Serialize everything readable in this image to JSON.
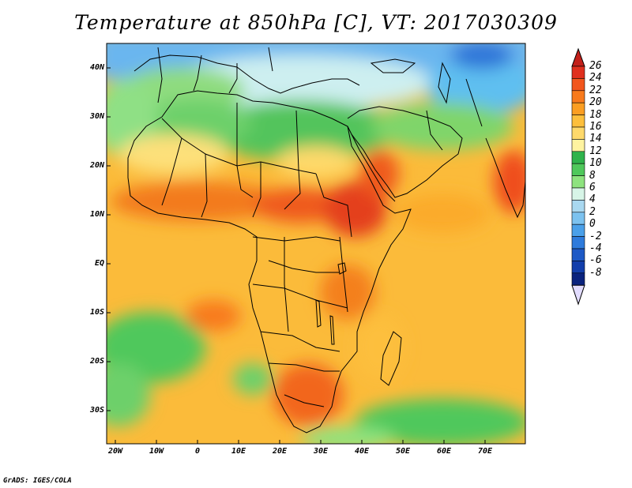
{
  "title": "Temperature at 850hPa [C], VT: 2017030309",
  "credit": "GrADS: IGES/COLA",
  "lat_labels": [
    "40N",
    "30N",
    "20N",
    "10N",
    "EQ",
    "10S",
    "20S",
    "30S"
  ],
  "lon_labels": [
    "20W",
    "10W",
    "0",
    "10E",
    "20E",
    "30E",
    "40E",
    "50E",
    "60E",
    "70E"
  ],
  "colorbar": {
    "labels": [
      "26",
      "24",
      "22",
      "20",
      "18",
      "16",
      "14",
      "12",
      "10",
      "8",
      "6",
      "4",
      "2",
      "0",
      "-2",
      "-4",
      "-6",
      "-8"
    ],
    "colors": [
      "#e0301e",
      "#f2561d",
      "#f87a1c",
      "#fb9e22",
      "#fdbf3c",
      "#fed96b",
      "#fef3a0",
      "#2fb34b",
      "#4fc85b",
      "#8ee37f",
      "#d7f5e7",
      "#a9d8f0",
      "#7cc2ef",
      "#4aa0e9",
      "#2e7bdc",
      "#1d59c6",
      "#123eab",
      "#0a237e"
    ],
    "over_color": "#c3201a",
    "under_color": "#e2dcff"
  }
}
